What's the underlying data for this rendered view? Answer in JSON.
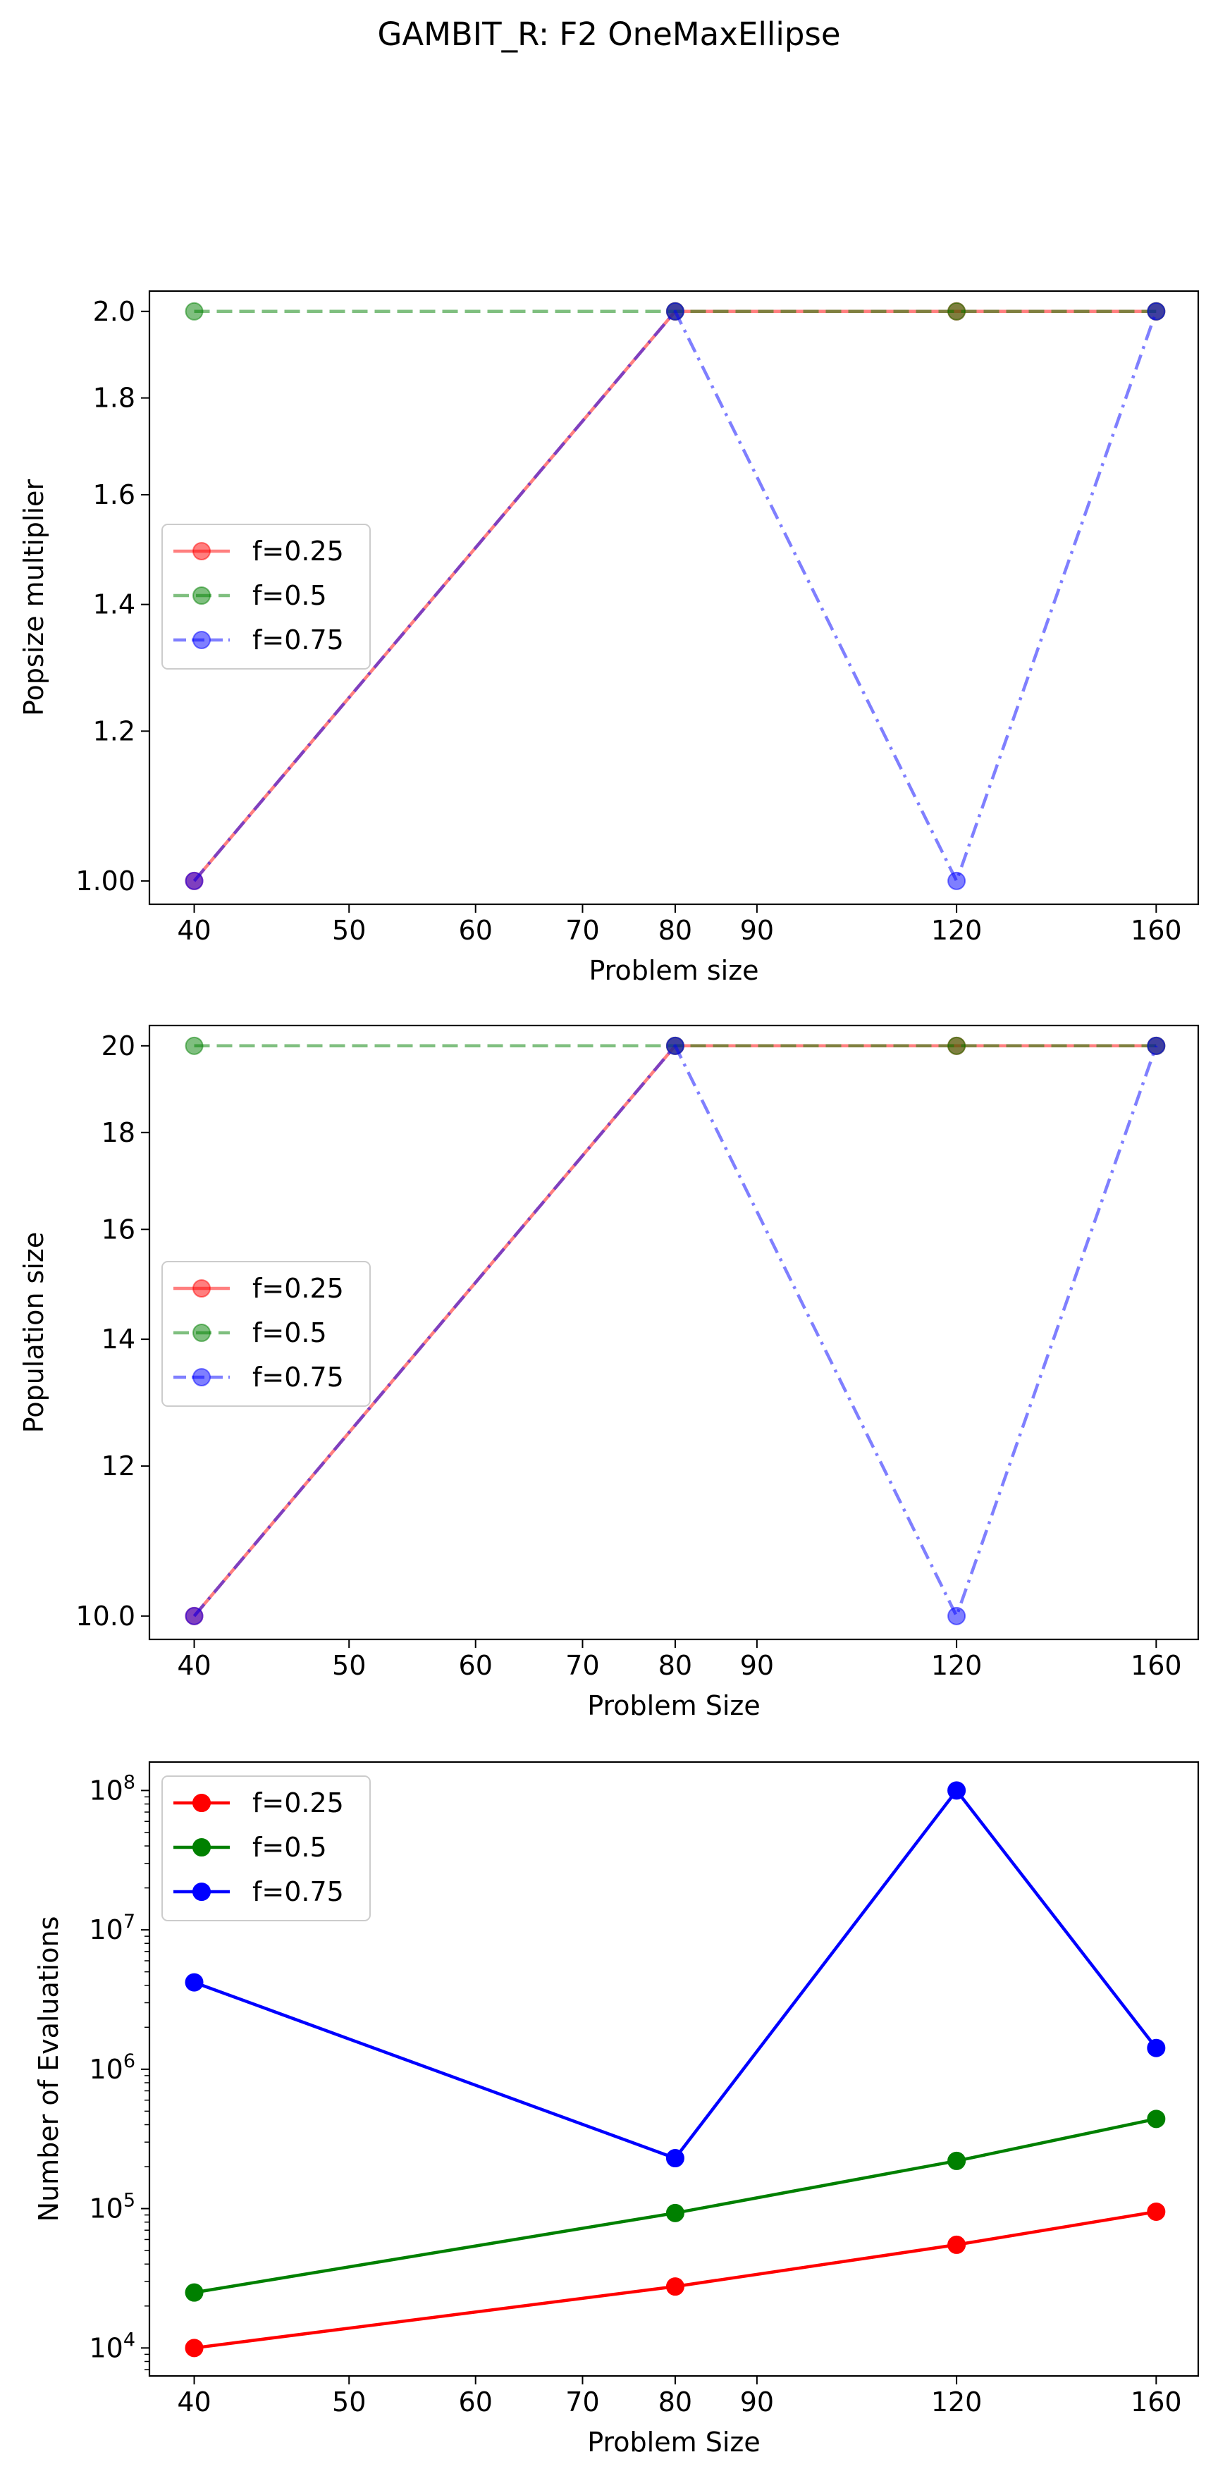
{
  "figure_title": "GAMBIT_R: F2 OneMaxEllipse",
  "chart_data": [
    {
      "type": "line",
      "xlabel": "Problem size",
      "ylabel": "Popsize multiplier",
      "xscale": "log",
      "yscale": "log",
      "xlim": [
        37.5,
        170
      ],
      "ylim": [
        0.972,
        2.05
      ],
      "x_ticks": [
        40,
        50,
        60,
        70,
        80,
        90,
        120,
        160
      ],
      "x_tick_labels": [
        "40",
        "50",
        "60",
        "70",
        "80",
        "90",
        "120",
        "160"
      ],
      "y_ticks": [
        1.0,
        1.2,
        1.4,
        1.6,
        1.8,
        2.0
      ],
      "y_tick_labels": [
        "1.00",
        "1.2",
        "1.4",
        "1.6",
        "1.8",
        "2.0"
      ],
      "legend_position": "center-left",
      "x": [
        40,
        80,
        120,
        160
      ],
      "series": [
        {
          "name": "f=0.25",
          "color": "#ff0000",
          "linestyle": "solid",
          "alpha": 0.5,
          "values": [
            1.0,
            2.0,
            2.0,
            2.0
          ]
        },
        {
          "name": "f=0.5",
          "color": "#008000",
          "linestyle": "dashed",
          "alpha": 0.5,
          "values": [
            2.0,
            2.0,
            2.0,
            2.0
          ]
        },
        {
          "name": "f=0.75",
          "color": "#0000ff",
          "linestyle": "dashdot",
          "alpha": 0.5,
          "values": [
            1.0,
            2.0,
            1.0,
            2.0
          ]
        }
      ]
    },
    {
      "type": "line",
      "xlabel": "Problem Size",
      "ylabel": "Population size",
      "xscale": "log",
      "yscale": "log",
      "xlim": [
        37.5,
        170
      ],
      "ylim": [
        9.72,
        20.5
      ],
      "x_ticks": [
        40,
        50,
        60,
        70,
        80,
        90,
        120,
        160
      ],
      "x_tick_labels": [
        "40",
        "50",
        "60",
        "70",
        "80",
        "90",
        "120",
        "160"
      ],
      "y_ticks": [
        10,
        12,
        14,
        16,
        18,
        20
      ],
      "y_tick_labels": [
        "10.0",
        "12",
        "14",
        "16",
        "18",
        "20"
      ],
      "legend_position": "center-left",
      "x": [
        40,
        80,
        120,
        160
      ],
      "series": [
        {
          "name": "f=0.25",
          "color": "#ff0000",
          "linestyle": "solid",
          "alpha": 0.5,
          "values": [
            10,
            20,
            20,
            20
          ]
        },
        {
          "name": "f=0.5",
          "color": "#008000",
          "linestyle": "dashed",
          "alpha": 0.5,
          "values": [
            20,
            20,
            20,
            20
          ]
        },
        {
          "name": "f=0.75",
          "color": "#0000ff",
          "linestyle": "dashdot",
          "alpha": 0.5,
          "values": [
            10,
            20,
            10,
            20
          ]
        }
      ]
    },
    {
      "type": "line",
      "xlabel": "Problem Size",
      "ylabel": "Number of Evaluations",
      "xscale": "log",
      "yscale": "log",
      "xlim": [
        37.5,
        170
      ],
      "ylim": [
        6300,
        160000000
      ],
      "x_ticks": [
        40,
        50,
        60,
        70,
        80,
        90,
        120,
        160
      ],
      "x_tick_labels": [
        "40",
        "50",
        "60",
        "70",
        "80",
        "90",
        "120",
        "160"
      ],
      "y_ticks": [
        10000,
        100000,
        1000000,
        10000000,
        100000000
      ],
      "y_tick_labels": [
        {
          "base": "10",
          "exp": "4"
        },
        {
          "base": "10",
          "exp": "5"
        },
        {
          "base": "10",
          "exp": "6"
        },
        {
          "base": "10",
          "exp": "7"
        },
        {
          "base": "10",
          "exp": "8"
        }
      ],
      "minor_y_ticks": true,
      "legend_position": "top-left",
      "x": [
        40,
        80,
        120,
        160
      ],
      "series": [
        {
          "name": "f=0.25",
          "color": "#ff0000",
          "linestyle": "solid",
          "alpha": 1.0,
          "values": [
            10000,
            27600,
            55000,
            95000
          ]
        },
        {
          "name": "f=0.5",
          "color": "#008000",
          "linestyle": "solid",
          "alpha": 1.0,
          "values": [
            25000,
            93000,
            220000,
            440000
          ]
        },
        {
          "name": "f=0.75",
          "color": "#0000ff",
          "linestyle": "solid",
          "alpha": 1.0,
          "values": [
            4200000,
            230000,
            100000000,
            1420000
          ]
        }
      ]
    }
  ]
}
